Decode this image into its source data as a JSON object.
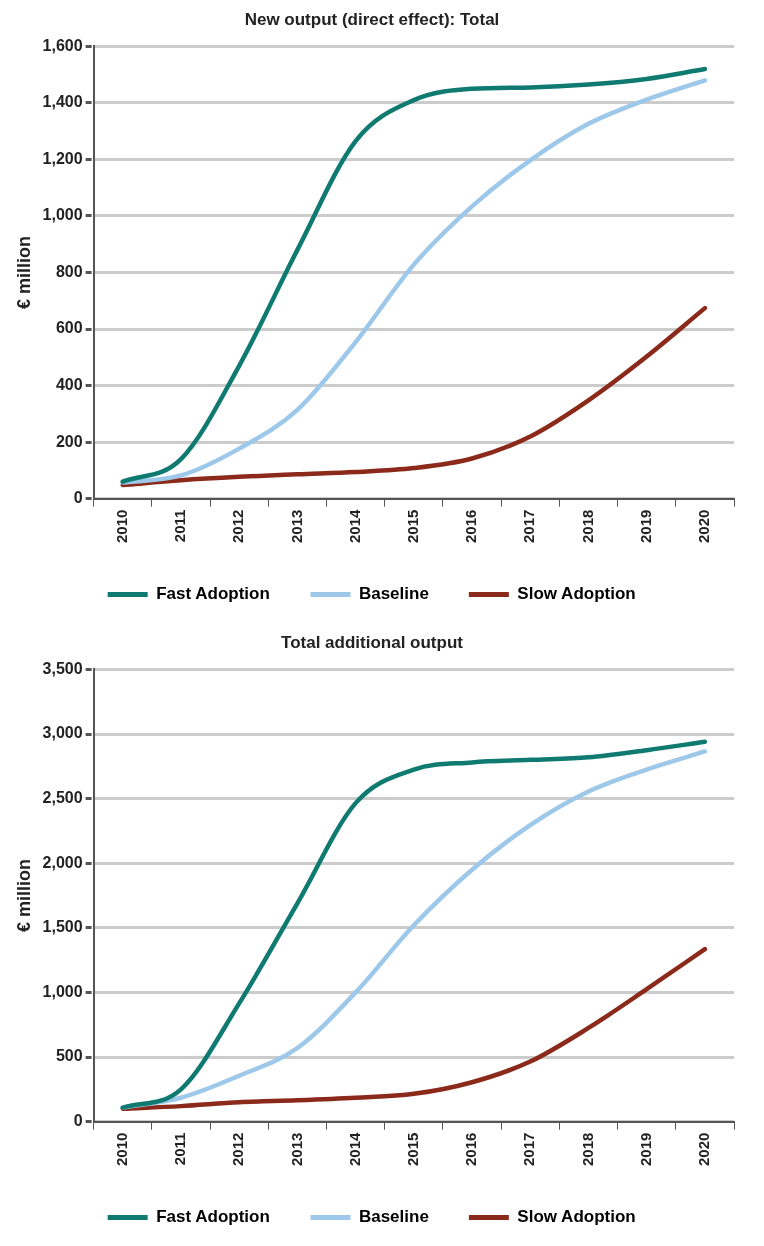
{
  "chart_data": [
    {
      "type": "line",
      "title": "New output (direct effect): Total",
      "ylabel": "€ million",
      "categories": [
        "2010",
        "2011",
        "2012",
        "2013",
        "2014",
        "2015",
        "2016",
        "2017",
        "2018",
        "2019",
        "2020"
      ],
      "series": [
        {
          "name": "Fast Adoption",
          "color": "#0f7a70",
          "values": [
            60,
            140,
            470,
            880,
            1265,
            1410,
            1450,
            1455,
            1465,
            1485,
            1520
          ]
        },
        {
          "name": "Baseline",
          "color": "#9dc8ea",
          "values": [
            57,
            82,
            177,
            314,
            554,
            828,
            1034,
            1197,
            1326,
            1412,
            1480
          ]
        },
        {
          "name": "Slow Adoption",
          "color": "#8b2a1a",
          "values": [
            48,
            65,
            77,
            86,
            94,
            108,
            142,
            220,
            348,
            503,
            674
          ]
        }
      ],
      "ylim": [
        0,
        1600
      ],
      "yticks": [
        0,
        200,
        400,
        600,
        800,
        {
          "value": 1000,
          "label": "1,000"
        },
        {
          "value": 1200,
          "label": "1,200"
        },
        {
          "value": 1400,
          "label": "1,400"
        },
        {
          "value": 1600,
          "label": "1,600"
        }
      ],
      "grid": "y",
      "legend": "bottom",
      "marker": "none"
    },
    {
      "type": "line",
      "title": "Total additional output",
      "ylabel": "€ million",
      "categories": [
        "2010",
        "2011",
        "2012",
        "2013",
        "2014",
        "2015",
        "2016",
        "2017",
        "2018",
        "2019",
        "2020"
      ],
      "series": [
        {
          "name": "Fast Adoption",
          "color": "#0f7a70",
          "values": [
            108,
            250,
            915,
            1690,
            2465,
            2725,
            2780,
            2800,
            2820,
            2875,
            2940
          ]
        },
        {
          "name": "Baseline",
          "color": "#9dc8ea",
          "values": [
            108,
            185,
            355,
            570,
            1000,
            1520,
            1950,
            2295,
            2555,
            2725,
            2865
          ]
        },
        {
          "name": "Slow Adoption",
          "color": "#8b2a1a",
          "values": [
            100,
            120,
            150,
            165,
            185,
            215,
            305,
            465,
            725,
            1025,
            1335
          ]
        }
      ],
      "ylim": [
        0,
        3500
      ],
      "yticks": [
        0,
        500,
        {
          "value": 1000,
          "label": "1,000"
        },
        {
          "value": 1500,
          "label": "1,500"
        },
        {
          "value": 2000,
          "label": "2,000"
        },
        {
          "value": 2500,
          "label": "2,500"
        },
        {
          "value": 3000,
          "label": "3,000"
        },
        {
          "value": 3500,
          "label": "3,500"
        }
      ],
      "grid": "y",
      "legend": "bottom",
      "marker": "none"
    }
  ]
}
